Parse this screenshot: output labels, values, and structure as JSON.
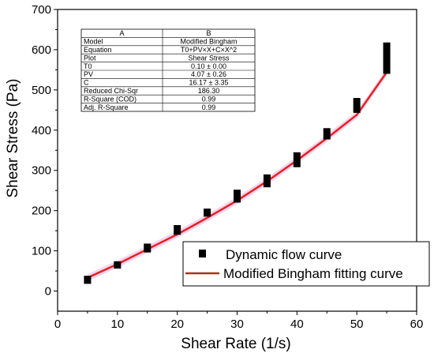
{
  "chart_data": {
    "type": "scatter",
    "xlabel": "Shear Rate (1/s)",
    "ylabel": "Shear Stress (Pa)",
    "xlim": [
      0,
      60
    ],
    "ylim": [
      -50,
      700
    ],
    "xticks": [
      "0",
      "10",
      "20",
      "30",
      "40",
      "50",
      "60"
    ],
    "yticks": [
      "0",
      "100",
      "200",
      "300",
      "400",
      "500",
      "600",
      "700"
    ],
    "grid": false,
    "legend_position": "bottom-right",
    "series": [
      {
        "name": "Dynamic flow curve",
        "kind": "scatter",
        "color": "#000000",
        "x": [
          5,
          10,
          15,
          20,
          25,
          30,
          35,
          40,
          45,
          50,
          55
        ],
        "y": [
          28,
          65,
          108,
          153,
          195,
          235,
          273,
          325,
          390,
          458,
          580
        ],
        "y_min": [
          18,
          56,
          96,
          140,
          185,
          220,
          258,
          308,
          377,
          443,
          540
        ],
        "y_max": [
          38,
          74,
          118,
          164,
          205,
          252,
          290,
          345,
          405,
          480,
          618
        ]
      },
      {
        "name": "Modified Bingham fitting curve",
        "kind": "line",
        "color": "#e8201d",
        "x": [
          5,
          10,
          15,
          20,
          25,
          30,
          35,
          40,
          45,
          50,
          55
        ],
        "y": [
          33,
          67,
          104,
          141,
          182,
          225,
          273,
          325,
          380,
          438,
          544
        ]
      }
    ],
    "legend_line_color": "#a0391c",
    "band_color": "#e7b8e7",
    "table": {
      "header": [
        "A",
        "B"
      ],
      "rows": [
        [
          "Model",
          "Modified Bingham"
        ],
        [
          "Equation",
          "T0+PV×X+C×X^2"
        ],
        [
          "Plot",
          "Shear Stress"
        ],
        [
          "T0",
          "0.10 ± 0.00"
        ],
        [
          "PV",
          "4.07 ± 0.26"
        ],
        [
          "C",
          "16.17 ± 3.35"
        ],
        [
          "Reduced Chi-Sqr",
          "186.30"
        ],
        [
          "R-Square (COD)",
          "0.99"
        ],
        [
          "Adj. R-Square",
          "0.99"
        ]
      ]
    }
  }
}
